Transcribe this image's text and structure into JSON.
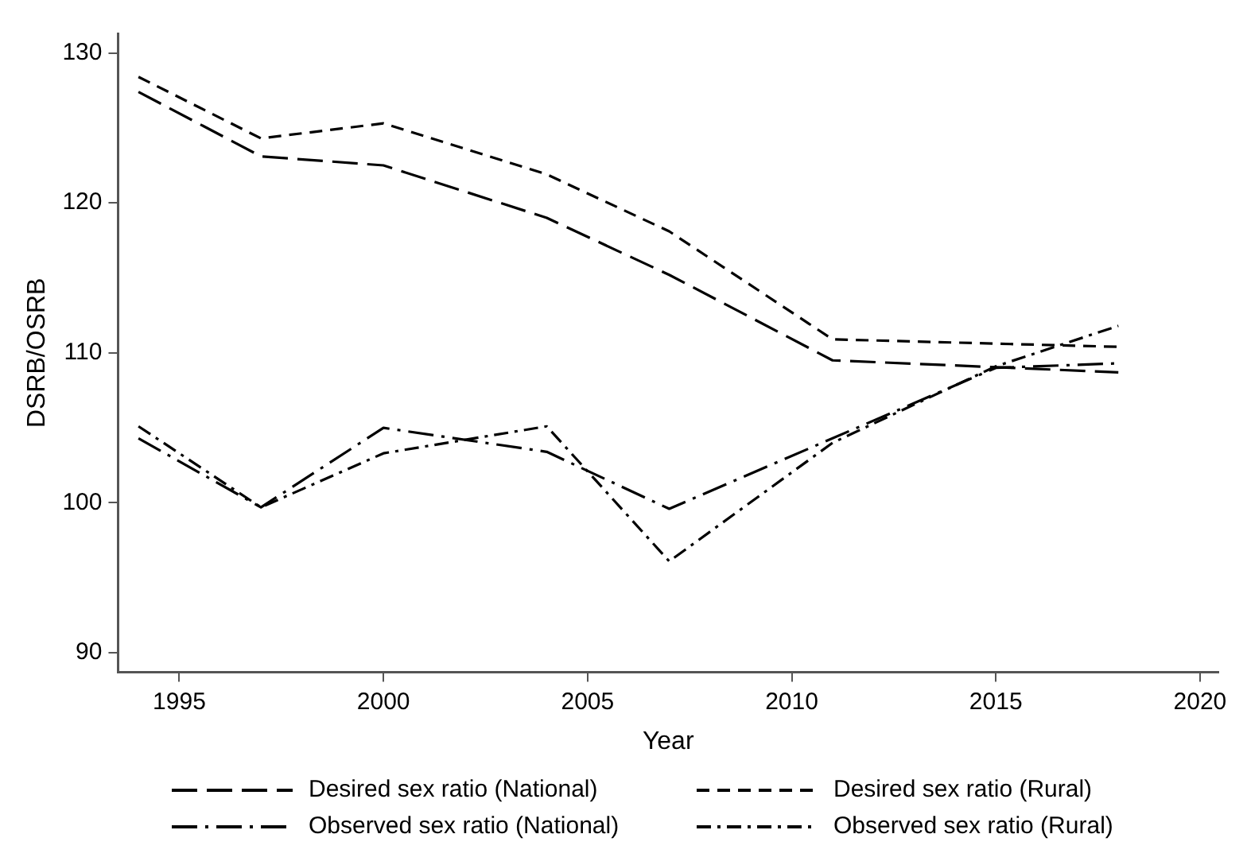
{
  "chart_data": {
    "type": "line",
    "xlabel": "Year",
    "ylabel": "DSRB/OSRB",
    "xlim": [
      1993.5,
      2020.45
    ],
    "xticks": [
      1995,
      2000,
      2005,
      2010,
      2015,
      2020
    ],
    "ylim": [
      88.7,
      131.3
    ],
    "yticks": [
      90,
      100,
      110,
      120,
      130
    ],
    "grid": false,
    "legend": "bottom",
    "marker": "none",
    "series": [
      {
        "name": "Desired sex ratio (National)",
        "color": "#000000",
        "line_style": "longdash",
        "x": [
          1994,
          1997,
          2000,
          2004,
          2007,
          2011,
          2018
        ],
        "values": [
          127.4,
          123.1,
          122.5,
          119.0,
          115.2,
          109.5,
          108.7
        ]
      },
      {
        "name": "Desired sex ratio (Rural)",
        "color": "#000000",
        "line_style": "dashed",
        "x": [
          1994,
          1997,
          2000,
          2004,
          2007,
          2011,
          2018
        ],
        "values": [
          128.4,
          124.3,
          125.3,
          121.9,
          118.1,
          110.9,
          110.4
        ]
      },
      {
        "name": "Observed sex ratio (National)",
        "color": "#000000",
        "line_style": "longdashdot",
        "x": [
          1994,
          1997,
          2000,
          2004,
          2007,
          2015,
          2018
        ],
        "values": [
          104.3,
          99.7,
          105.0,
          103.4,
          99.6,
          109.0,
          109.3
        ]
      },
      {
        "name": "Observed sex ratio (Rural)",
        "color": "#000000",
        "line_style": "dashdot",
        "x": [
          1994,
          1997,
          2000,
          2004,
          2007,
          2011,
          2015,
          2018
        ],
        "values": [
          105.1,
          99.7,
          103.3,
          105.1,
          96.1,
          104.0,
          109.1,
          111.8
        ]
      }
    ]
  }
}
